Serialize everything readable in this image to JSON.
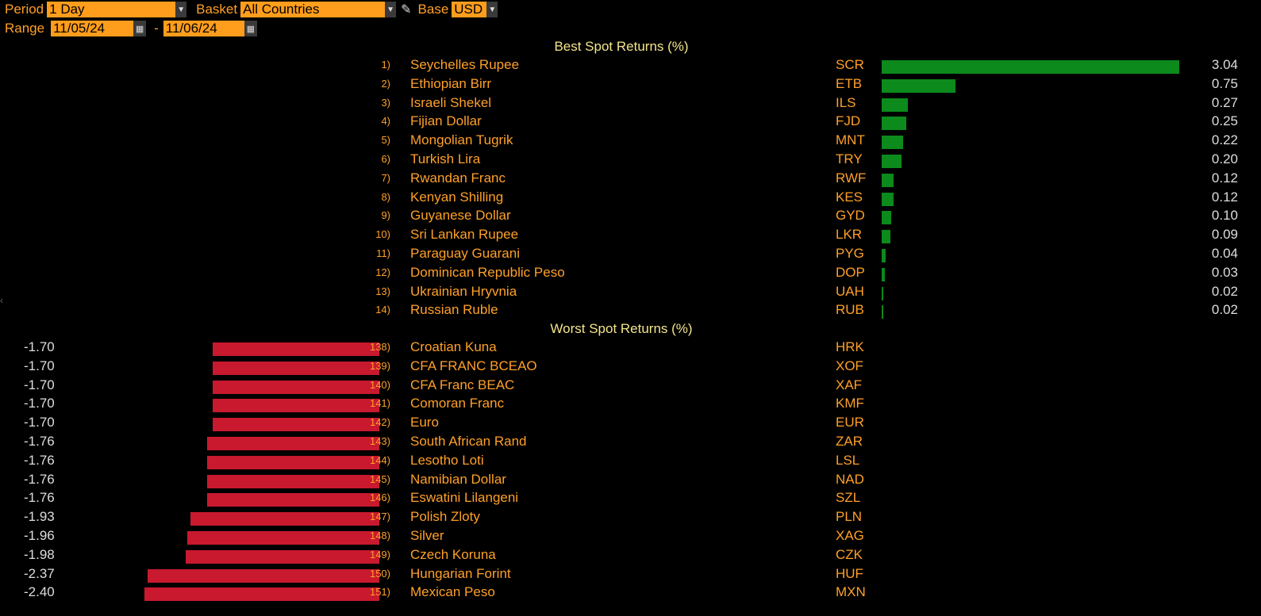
{
  "controls": {
    "period_label": "Period",
    "period_value": "1 Day",
    "basket_label": "Basket",
    "basket_value": "All Countries",
    "base_label": "Base",
    "base_value": "USD",
    "range_label": "Range",
    "range_start": "11/05/24",
    "range_separator": "-",
    "range_end": "11/06/24"
  },
  "best": {
    "title": "Best Spot Returns (%)",
    "max_value": 3.04,
    "rows": [
      {
        "rank": "1)",
        "name": "Seychelles Rupee",
        "code": "SCR",
        "value": 3.04,
        "label": "3.04"
      },
      {
        "rank": "2)",
        "name": "Ethiopian Birr",
        "code": "ETB",
        "value": 0.75,
        "label": "0.75"
      },
      {
        "rank": "3)",
        "name": "Israeli Shekel",
        "code": "ILS",
        "value": 0.27,
        "label": "0.27"
      },
      {
        "rank": "4)",
        "name": "Fijian Dollar",
        "code": "FJD",
        "value": 0.25,
        "label": "0.25"
      },
      {
        "rank": "5)",
        "name": "Mongolian Tugrik",
        "code": "MNT",
        "value": 0.22,
        "label": "0.22"
      },
      {
        "rank": "6)",
        "name": "Turkish Lira",
        "code": "TRY",
        "value": 0.2,
        "label": "0.20"
      },
      {
        "rank": "7)",
        "name": "Rwandan Franc",
        "code": "RWF",
        "value": 0.12,
        "label": "0.12"
      },
      {
        "rank": "8)",
        "name": "Kenyan Shilling",
        "code": "KES",
        "value": 0.12,
        "label": "0.12"
      },
      {
        "rank": "9)",
        "name": "Guyanese Dollar",
        "code": "GYD",
        "value": 0.1,
        "label": "0.10"
      },
      {
        "rank": "10)",
        "name": "Sri Lankan Rupee",
        "code": "LKR",
        "value": 0.09,
        "label": "0.09"
      },
      {
        "rank": "11)",
        "name": "Paraguay Guarani",
        "code": "PYG",
        "value": 0.04,
        "label": "0.04"
      },
      {
        "rank": "12)",
        "name": "Dominican Republic Peso",
        "code": "DOP",
        "value": 0.03,
        "label": "0.03"
      },
      {
        "rank": "13)",
        "name": "Ukrainian Hryvnia",
        "code": "UAH",
        "value": 0.02,
        "label": "0.02"
      },
      {
        "rank": "14)",
        "name": "Russian Ruble",
        "code": "RUB",
        "value": 0.02,
        "label": "0.02"
      }
    ]
  },
  "worst": {
    "title": "Worst Spot Returns (%)",
    "max_abs_value": 2.4,
    "rows": [
      {
        "rank": "138)",
        "name": "Croatian Kuna",
        "code": "HRK",
        "value": -1.7,
        "label": "-1.70"
      },
      {
        "rank": "139)",
        "name": "CFA FRANC BCEAO",
        "code": "XOF",
        "value": -1.7,
        "label": "-1.70"
      },
      {
        "rank": "140)",
        "name": "CFA Franc BEAC",
        "code": "XAF",
        "value": -1.7,
        "label": "-1.70"
      },
      {
        "rank": "141)",
        "name": "Comoran Franc",
        "code": "KMF",
        "value": -1.7,
        "label": "-1.70"
      },
      {
        "rank": "142)",
        "name": "Euro",
        "code": "EUR",
        "value": -1.7,
        "label": "-1.70"
      },
      {
        "rank": "143)",
        "name": "South African Rand",
        "code": "ZAR",
        "value": -1.76,
        "label": "-1.76"
      },
      {
        "rank": "144)",
        "name": "Lesotho Loti",
        "code": "LSL",
        "value": -1.76,
        "label": "-1.76"
      },
      {
        "rank": "145)",
        "name": "Namibian Dollar",
        "code": "NAD",
        "value": -1.76,
        "label": "-1.76"
      },
      {
        "rank": "146)",
        "name": "Eswatini Lilangeni",
        "code": "SZL",
        "value": -1.76,
        "label": "-1.76"
      },
      {
        "rank": "147)",
        "name": "Polish Zloty",
        "code": "PLN",
        "value": -1.93,
        "label": "-1.93"
      },
      {
        "rank": "148)",
        "name": "Silver",
        "code": "XAG",
        "value": -1.96,
        "label": "-1.96"
      },
      {
        "rank": "149)",
        "name": "Czech Koruna",
        "code": "CZK",
        "value": -1.98,
        "label": "-1.98"
      },
      {
        "rank": "150)",
        "name": "Hungarian Forint",
        "code": "HUF",
        "value": -2.37,
        "label": "-2.37"
      },
      {
        "rank": "151)",
        "name": "Mexican Peso",
        "code": "MXN",
        "value": -2.4,
        "label": "-2.40"
      }
    ]
  },
  "colors": {
    "positive": "#0c8a1c",
    "negative": "#c8192f",
    "accent": "#ffa028"
  }
}
